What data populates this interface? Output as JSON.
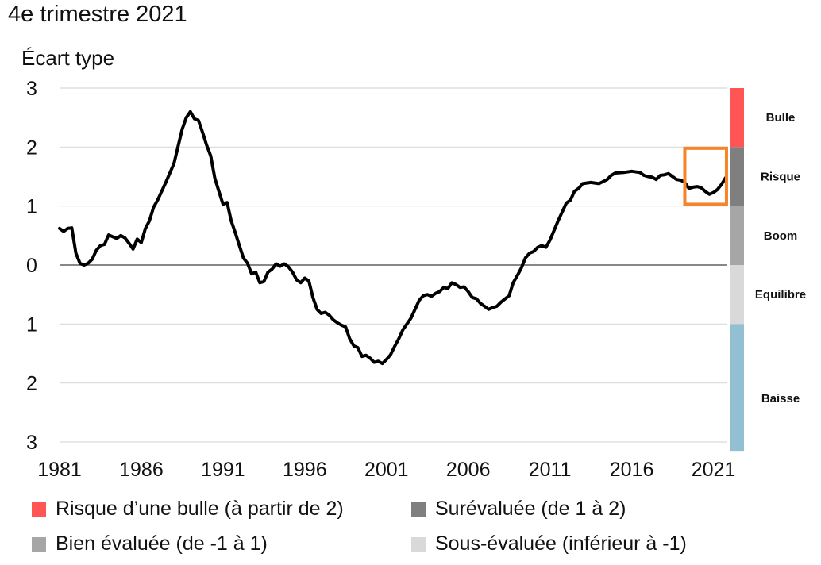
{
  "title": "4e trimestre 2021",
  "chart_data": {
    "type": "line",
    "ylabel": "Écart type",
    "ylim": [
      -3,
      3
    ],
    "y_ticks": [
      {
        "value": 3,
        "label": "3"
      },
      {
        "value": 2,
        "label": "2"
      },
      {
        "value": 1,
        "label": "1"
      },
      {
        "value": 0,
        "label": "0"
      },
      {
        "value": -1,
        "label": "1"
      },
      {
        "value": -2,
        "label": "2"
      },
      {
        "value": -3,
        "label": "3"
      }
    ],
    "xlim": [
      1981,
      2021.85
    ],
    "x_ticks": [
      {
        "value": 1981,
        "label": "1981"
      },
      {
        "value": 1986,
        "label": "1986"
      },
      {
        "value": 1991,
        "label": "1991"
      },
      {
        "value": 1996,
        "label": "1996"
      },
      {
        "value": 2001,
        "label": "2001"
      },
      {
        "value": 2006,
        "label": "2006"
      },
      {
        "value": 2011,
        "label": "2011"
      },
      {
        "value": 2016,
        "label": "2016"
      },
      {
        "value": 2021,
        "label": "2021"
      }
    ],
    "grid": true,
    "zones": [
      {
        "label": "Bulle",
        "from": 2,
        "to": 3,
        "color": "#ff5555"
      },
      {
        "label": "Risque",
        "from": 1,
        "to": 2,
        "color": "#7f7f7f"
      },
      {
        "label": "Boom",
        "from": 0,
        "to": 1,
        "color": "#a6a6a6"
      },
      {
        "label": "Equilibre",
        "from": -1,
        "to": 0,
        "color": "#d9d9d9"
      },
      {
        "label": "Baisse",
        "from": -3.15,
        "to": -1,
        "color": "#92bfd1"
      }
    ],
    "highlight": {
      "x_from": 2019.25,
      "x_to": 2021.8,
      "y_from": 1.03,
      "y_to": 1.98,
      "color": "#f5842b"
    },
    "series": [
      {
        "color": "#000000",
        "points": [
          [
            1981.0,
            0.62
          ],
          [
            1981.25,
            0.57
          ],
          [
            1981.5,
            0.62
          ],
          [
            1981.75,
            0.63
          ],
          [
            1982.0,
            0.2
          ],
          [
            1982.25,
            0.03
          ],
          [
            1982.5,
            0.0
          ],
          [
            1982.75,
            0.03
          ],
          [
            1983.0,
            0.1
          ],
          [
            1983.25,
            0.25
          ],
          [
            1983.5,
            0.33
          ],
          [
            1983.75,
            0.35
          ],
          [
            1984.0,
            0.51
          ],
          [
            1984.25,
            0.48
          ],
          [
            1984.5,
            0.45
          ],
          [
            1984.75,
            0.5
          ],
          [
            1985.0,
            0.46
          ],
          [
            1985.25,
            0.37
          ],
          [
            1985.5,
            0.27
          ],
          [
            1985.75,
            0.44
          ],
          [
            1986.0,
            0.38
          ],
          [
            1986.25,
            0.62
          ],
          [
            1986.5,
            0.75
          ],
          [
            1986.75,
            0.98
          ],
          [
            1987.0,
            1.1
          ],
          [
            1987.5,
            1.4
          ],
          [
            1988.0,
            1.72
          ],
          [
            1988.5,
            2.3
          ],
          [
            1988.75,
            2.5
          ],
          [
            1989.0,
            2.6
          ],
          [
            1989.25,
            2.48
          ],
          [
            1989.5,
            2.45
          ],
          [
            1989.75,
            2.25
          ],
          [
            1990.0,
            2.03
          ],
          [
            1990.25,
            1.85
          ],
          [
            1990.5,
            1.47
          ],
          [
            1990.75,
            1.25
          ],
          [
            1991.0,
            1.03
          ],
          [
            1991.25,
            1.06
          ],
          [
            1991.5,
            0.75
          ],
          [
            1991.75,
            0.55
          ],
          [
            1992.0,
            0.33
          ],
          [
            1992.25,
            0.12
          ],
          [
            1992.5,
            0.03
          ],
          [
            1992.75,
            -0.15
          ],
          [
            1993.0,
            -0.12
          ],
          [
            1993.25,
            -0.3
          ],
          [
            1993.5,
            -0.28
          ],
          [
            1993.75,
            -0.12
          ],
          [
            1994.0,
            -0.07
          ],
          [
            1994.25,
            0.02
          ],
          [
            1994.5,
            -0.02
          ],
          [
            1994.75,
            0.02
          ],
          [
            1995.0,
            -0.03
          ],
          [
            1995.25,
            -0.12
          ],
          [
            1995.5,
            -0.25
          ],
          [
            1995.75,
            -0.3
          ],
          [
            1996.0,
            -0.22
          ],
          [
            1996.25,
            -0.27
          ],
          [
            1996.5,
            -0.55
          ],
          [
            1996.75,
            -0.75
          ],
          [
            1997.0,
            -0.82
          ],
          [
            1997.25,
            -0.8
          ],
          [
            1997.5,
            -0.85
          ],
          [
            1997.75,
            -0.93
          ],
          [
            1998.0,
            -0.98
          ],
          [
            1998.25,
            -1.02
          ],
          [
            1998.5,
            -1.05
          ],
          [
            1998.75,
            -1.25
          ],
          [
            1999.0,
            -1.37
          ],
          [
            1999.25,
            -1.4
          ],
          [
            1999.5,
            -1.55
          ],
          [
            1999.75,
            -1.53
          ],
          [
            2000.0,
            -1.58
          ],
          [
            2000.25,
            -1.65
          ],
          [
            2000.5,
            -1.63
          ],
          [
            2000.75,
            -1.67
          ],
          [
            2001.0,
            -1.6
          ],
          [
            2001.25,
            -1.52
          ],
          [
            2001.5,
            -1.38
          ],
          [
            2001.75,
            -1.25
          ],
          [
            2002.0,
            -1.1
          ],
          [
            2002.5,
            -0.9
          ],
          [
            2003.0,
            -0.6
          ],
          [
            2003.25,
            -0.52
          ],
          [
            2003.5,
            -0.5
          ],
          [
            2003.75,
            -0.53
          ],
          [
            2004.0,
            -0.48
          ],
          [
            2004.25,
            -0.45
          ],
          [
            2004.5,
            -0.38
          ],
          [
            2004.75,
            -0.4
          ],
          [
            2005.0,
            -0.3
          ],
          [
            2005.25,
            -0.33
          ],
          [
            2005.5,
            -0.38
          ],
          [
            2005.75,
            -0.37
          ],
          [
            2006.0,
            -0.45
          ],
          [
            2006.25,
            -0.55
          ],
          [
            2006.5,
            -0.57
          ],
          [
            2006.75,
            -0.65
          ],
          [
            2007.0,
            -0.7
          ],
          [
            2007.25,
            -0.75
          ],
          [
            2007.5,
            -0.72
          ],
          [
            2007.75,
            -0.7
          ],
          [
            2008.0,
            -0.63
          ],
          [
            2008.5,
            -0.52
          ],
          [
            2008.75,
            -0.3
          ],
          [
            2009.0,
            -0.18
          ],
          [
            2009.25,
            -0.05
          ],
          [
            2009.5,
            0.12
          ],
          [
            2009.75,
            0.2
          ],
          [
            2010.0,
            0.23
          ],
          [
            2010.25,
            0.3
          ],
          [
            2010.5,
            0.33
          ],
          [
            2010.75,
            0.3
          ],
          [
            2011.0,
            0.42
          ],
          [
            2011.5,
            0.75
          ],
          [
            2012.0,
            1.05
          ],
          [
            2012.25,
            1.1
          ],
          [
            2012.5,
            1.25
          ],
          [
            2012.75,
            1.3
          ],
          [
            2013.0,
            1.38
          ],
          [
            2013.5,
            1.4
          ],
          [
            2014.0,
            1.38
          ],
          [
            2014.5,
            1.45
          ],
          [
            2014.75,
            1.52
          ],
          [
            2015.0,
            1.56
          ],
          [
            2015.5,
            1.57
          ],
          [
            2016.0,
            1.59
          ],
          [
            2016.5,
            1.57
          ],
          [
            2016.75,
            1.52
          ],
          [
            2017.0,
            1.5
          ],
          [
            2017.25,
            1.49
          ],
          [
            2017.5,
            1.45
          ],
          [
            2017.75,
            1.52
          ],
          [
            2018.0,
            1.53
          ],
          [
            2018.25,
            1.55
          ],
          [
            2018.5,
            1.5
          ],
          [
            2018.75,
            1.45
          ],
          [
            2019.0,
            1.44
          ],
          [
            2019.25,
            1.4
          ],
          [
            2019.5,
            1.3
          ],
          [
            2019.75,
            1.32
          ],
          [
            2020.0,
            1.33
          ],
          [
            2020.25,
            1.31
          ],
          [
            2020.5,
            1.25
          ],
          [
            2020.75,
            1.2
          ],
          [
            2021.0,
            1.23
          ],
          [
            2021.25,
            1.28
          ],
          [
            2021.5,
            1.37
          ],
          [
            2021.75,
            1.48
          ]
        ]
      }
    ],
    "legend": [
      {
        "label": "Risque d’une bulle (à partir de 2)",
        "color": "#ff5555"
      },
      {
        "label": "Surévaluée (de 1 à  2)",
        "color": "#7f7f7f"
      },
      {
        "label": "Bien évaluée (de -1 à  1)",
        "color": "#a6a6a6"
      },
      {
        "label": "Sous-évaluée (inférieur à -1)",
        "color": "#d9d9d9"
      }
    ]
  }
}
